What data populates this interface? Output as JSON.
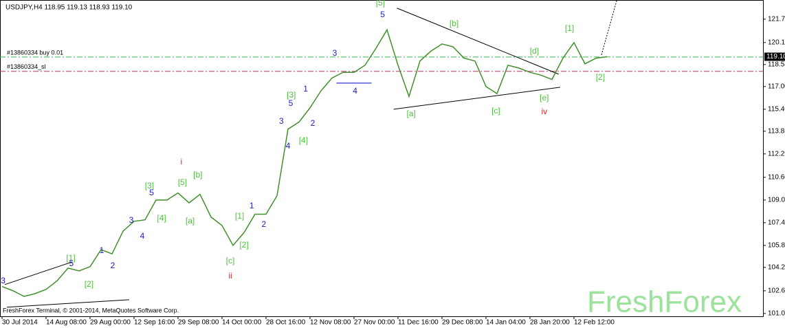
{
  "chart_data": {
    "type": "line",
    "title": "USDJPY,H4  118.95 119.13 118.93 119.10",
    "footer": "FreshForex Terminal, © 2001-2014, MetaQuotes Software Corp.",
    "watermark": "FreshForex",
    "categories": [
      "30 Jul 2014",
      null,
      null,
      null,
      "14 Aug 08:00",
      null,
      null,
      null,
      "29 Aug 00:00",
      null,
      null,
      null,
      "12 Sep 16:00",
      null,
      null,
      null,
      "29 Sep 08:00",
      null,
      null,
      null,
      "14 Oct 00:00",
      null,
      null,
      null,
      "28 Oct 16:00",
      null,
      null,
      null,
      "12 Nov 08:00",
      null,
      null,
      null,
      "27 Nov 00:00",
      null,
      null,
      null,
      "11 Dec 16:00",
      null,
      null,
      null,
      "29 Dec 08:00",
      null,
      null,
      null,
      "14 Jan 04:00",
      null,
      null,
      null,
      "28 Jan 20:00",
      null,
      null,
      null,
      "12 Feb 12:00",
      null,
      null,
      null
    ],
    "values": [
      102.9,
      102.6,
      102.2,
      102.4,
      102.7,
      103.3,
      104.2,
      104.0,
      104.3,
      105.5,
      105.2,
      106.8,
      107.5,
      107.6,
      109.0,
      109.0,
      109.5,
      108.8,
      109.4,
      107.8,
      107.2,
      105.8,
      106.7,
      108.0,
      108.0,
      109.3,
      114.0,
      114.5,
      115.5,
      116.7,
      117.6,
      118.0,
      118.0,
      118.5,
      119.7,
      121.0,
      118.5,
      116.3,
      118.8,
      119.5,
      120.0,
      119.8,
      119.0,
      118.8,
      117.0,
      116.5,
      118.5,
      118.3,
      118.0,
      117.8,
      117.5,
      119.0,
      120.1,
      118.6,
      119.0,
      119.1
    ],
    "color": "#3f8f2a",
    "ylim": [
      100.8,
      123.1
    ],
    "yticks": [
      {
        "value": 121.75,
        "label": "121.75"
      },
      {
        "value": 120.1,
        "label": "120.10"
      },
      {
        "value": 118.55,
        "label": "118.55"
      },
      {
        "value": 117.0,
        "label": "117.00"
      },
      {
        "value": 115.4,
        "label": "115.40"
      },
      {
        "value": 113.85,
        "label": "113.85"
      },
      {
        "value": 112.25,
        "label": "112.25"
      },
      {
        "value": 110.6,
        "label": "110.60"
      },
      {
        "value": 109.0,
        "label": "109.00"
      },
      {
        "value": 107.4,
        "label": "107.40"
      },
      {
        "value": 105.8,
        "label": "105.80"
      },
      {
        "value": 104.25,
        "label": "104.25"
      },
      {
        "value": 102.6,
        "label": "102.60"
      },
      {
        "value": 101.0,
        "label": "101.00"
      }
    ],
    "last_price": {
      "value": 119.1,
      "label": "119.10"
    },
    "hlines": [
      {
        "label": "#13860334 buy 0.01",
        "value": 119.08,
        "color": "#3cb44b"
      },
      {
        "label": "#13860334_sl",
        "value": 118.07,
        "color": "#c0306a"
      }
    ],
    "trendlines": [
      {
        "x": [
          35.9,
          50.6
        ],
        "y": [
          122.53,
          117.87
        ],
        "color": "#000000",
        "dashed": false
      },
      {
        "x": [
          35.6,
          50.75
        ],
        "y": [
          115.4,
          116.95
        ],
        "color": "#000000",
        "dashed": false
      },
      {
        "x": [
          0.25,
          6.4
        ],
        "y": [
          103.04,
          104.64
        ],
        "color": "#000000",
        "dashed": false
      },
      {
        "x": [
          0.44,
          11.56
        ],
        "y": [
          101.44,
          101.97
        ],
        "color": "#000000",
        "dashed": false
      },
      {
        "x": [
          30.4,
          33.6
        ],
        "y": [
          117.24,
          117.24
        ],
        "color": "#0000cc",
        "dashed": false
      },
      {
        "x": [
          54.5,
          55.9
        ],
        "y": [
          119.23,
          123.1
        ],
        "color": "#000000",
        "dashed": true
      }
    ],
    "annotations": [
      {
        "text": "[5]",
        "x": 34.4,
        "y": 122.87,
        "color": "#4cc43c"
      },
      {
        "text": "[b]",
        "x": 41.1,
        "y": 121.41,
        "color": "#4cc43c"
      },
      {
        "text": "[1]",
        "x": 51.6,
        "y": 121.07,
        "color": "#4cc43c"
      },
      {
        "text": "[d]",
        "x": 48.4,
        "y": 119.47,
        "color": "#4cc43c"
      },
      {
        "text": "[2]",
        "x": 54.4,
        "y": 117.63,
        "color": "#4cc43c"
      },
      {
        "text": "[a]",
        "x": 37.2,
        "y": 115.06,
        "color": "#4cc43c"
      },
      {
        "text": "[c]",
        "x": 44.9,
        "y": 115.25,
        "color": "#4cc43c"
      },
      {
        "text": "[e]",
        "x": 49.3,
        "y": 116.17,
        "color": "#4cc43c"
      },
      {
        "text": "iv",
        "x": 49.3,
        "y": 115.21,
        "color": "#e02020"
      },
      {
        "text": "3",
        "x": 30.25,
        "y": 119.33,
        "color": "#2020c0"
      },
      {
        "text": "4",
        "x": 32.1,
        "y": 116.66,
        "color": "#2020c0"
      },
      {
        "text": "5",
        "x": 34.6,
        "y": 122.04,
        "color": "#2020c0"
      },
      {
        "text": "[3]",
        "x": 26.3,
        "y": 116.37,
        "color": "#4cc43c"
      },
      {
        "text": "5",
        "x": 26.25,
        "y": 115.79,
        "color": "#2020c0"
      },
      {
        "text": "1",
        "x": 27.6,
        "y": 116.8,
        "color": "#2020c0"
      },
      {
        "text": "2",
        "x": 28.25,
        "y": 114.38,
        "color": "#2020c0"
      },
      {
        "text": "3",
        "x": 25.4,
        "y": 114.53,
        "color": "#2020c0"
      },
      {
        "text": "4",
        "x": 26.0,
        "y": 112.78,
        "color": "#2020c0"
      },
      {
        "text": "[4]",
        "x": 27.4,
        "y": 113.17,
        "color": "#4cc43c"
      },
      {
        "text": "i",
        "x": 16.3,
        "y": 111.67,
        "color": "#e02020"
      },
      {
        "text": "[b]",
        "x": 17.8,
        "y": 110.75,
        "color": "#4cc43c"
      },
      {
        "text": "[5]",
        "x": 16.4,
        "y": 110.21,
        "color": "#4cc43c"
      },
      {
        "text": "[a]",
        "x": 17.1,
        "y": 107.5,
        "color": "#4cc43c"
      },
      {
        "text": "[3]",
        "x": 13.4,
        "y": 109.97,
        "color": "#4cc43c"
      },
      {
        "text": "5",
        "x": 13.6,
        "y": 109.49,
        "color": "#2020c0"
      },
      {
        "text": "[4]",
        "x": 14.5,
        "y": 107.69,
        "color": "#4cc43c"
      },
      {
        "text": "3",
        "x": 11.75,
        "y": 107.55,
        "color": "#2020c0"
      },
      {
        "text": "4",
        "x": 12.75,
        "y": 106.43,
        "color": "#2020c0"
      },
      {
        "text": "1",
        "x": 9.06,
        "y": 105.41,
        "color": "#2020c0"
      },
      {
        "text": "2",
        "x": 10.06,
        "y": 104.35,
        "color": "#2020c0"
      },
      {
        "text": "[1]",
        "x": 6.25,
        "y": 104.88,
        "color": "#4cc43c"
      },
      {
        "text": "5",
        "x": 6.3,
        "y": 104.5,
        "color": "#2020c0"
      },
      {
        "text": "[2]",
        "x": 7.9,
        "y": 103.04,
        "color": "#4cc43c"
      },
      {
        "text": "3",
        "x": 0.1,
        "y": 103.28,
        "color": "#2020c0"
      },
      {
        "text": "[1]",
        "x": 21.6,
        "y": 107.84,
        "color": "#4cc43c"
      },
      {
        "text": "1",
        "x": 22.7,
        "y": 108.56,
        "color": "#2020c0"
      },
      {
        "text": "2",
        "x": 23.8,
        "y": 107.26,
        "color": "#2020c0"
      },
      {
        "text": "[2]",
        "x": 22.0,
        "y": 105.8,
        "color": "#4cc43c"
      },
      {
        "text": "[c]",
        "x": 20.75,
        "y": 104.69,
        "color": "#4cc43c"
      },
      {
        "text": "ii",
        "x": 20.75,
        "y": 103.62,
        "color": "#e02020"
      }
    ]
  }
}
